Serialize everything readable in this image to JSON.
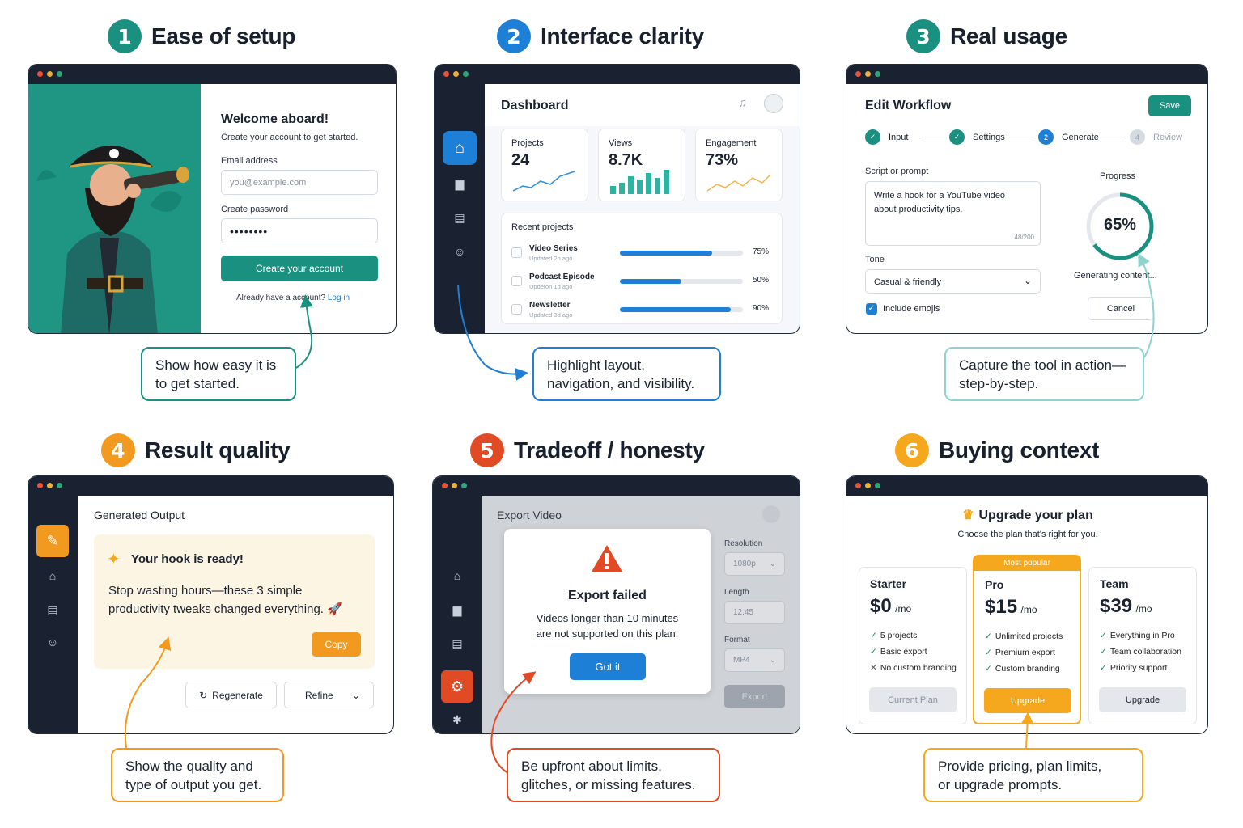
{
  "sections": [
    {
      "num": "1",
      "title": "Ease of setup",
      "callout_l1": "Show how easy it is",
      "callout_l2": "to get started."
    },
    {
      "num": "2",
      "title": "Interface clarity",
      "callout_l1": "Highlight layout,",
      "callout_l2": "navigation, and visibility."
    },
    {
      "num": "3",
      "title": "Real usage",
      "callout_l1": "Capture the tool in action—",
      "callout_l2": "step-by-step."
    },
    {
      "num": "4",
      "title": "Result quality",
      "callout_l1": "Show the quality and",
      "callout_l2": "type of output you get."
    },
    {
      "num": "5",
      "title": "Tradeoff / honesty",
      "callout_l1": "Be upfront about limits,",
      "callout_l2": "glitches, or missing features."
    },
    {
      "num": "6",
      "title": "Buying context",
      "callout_l1": "Provide pricing, plan limits,",
      "callout_l2": "or upgrade prompts."
    }
  ],
  "colors": {
    "teal": "#1a9080",
    "blue": "#1e7fd6",
    "orange": "#f29a1f",
    "red": "#e04b26",
    "gold": "#f5a81d",
    "dark": "#1a2232"
  },
  "signup": {
    "title": "Welcome aboard!",
    "subtitle": "Create your account to get started.",
    "email_label": "Email address",
    "email_placeholder": "you@example.com",
    "password_label": "Create password",
    "password_value": "••••••••",
    "create_button": "Create your account",
    "have_account": "Already have a account?",
    "login_link": "Log in"
  },
  "dashboard": {
    "title": "Dashboard",
    "stats": [
      {
        "label": "Projects",
        "value": "24"
      },
      {
        "label": "Views",
        "value": "8.7K"
      },
      {
        "label": "Engagement",
        "value": "73%"
      }
    ],
    "recent_title": "Recent projects",
    "projects": [
      {
        "name": "Video Series",
        "updated": "Updated 2h ago",
        "pct": "75%",
        "fill": 0.75
      },
      {
        "name": "Podcast Episode",
        "updated": "Updeton 1d ago",
        "pct": "50%",
        "fill": 0.5
      },
      {
        "name": "Newsletter",
        "updated": "Updated 3d ago",
        "pct": "90%",
        "fill": 0.9
      }
    ]
  },
  "workflow": {
    "title": "Edit Workflow",
    "save": "Save",
    "steps": [
      {
        "n": "✓",
        "label": "Input"
      },
      {
        "n": "✓",
        "label": "Settings"
      },
      {
        "n": "2",
        "label": "Generate"
      },
      {
        "n": "4",
        "label": "Review"
      }
    ],
    "script_label": "Script or prompt",
    "script_l1": "Write a hook for a YouTube video",
    "script_l2": "about productivity tips.",
    "counter": "48/200",
    "tone_label": "Tone",
    "tone_value": "Casual & friendly",
    "emojis": "Include emojis",
    "progress_label": "Progress",
    "progress_value": "65%",
    "progress_fraction": 0.65,
    "generating": "Generating content...",
    "cancel": "Cancel"
  },
  "output": {
    "title": "Generated Output",
    "ready": "Your hook is ready!",
    "text_l1": "Stop wasting hours—these 3 simple",
    "text_l2": "productivity tweaks changed everything. 🚀",
    "copy": "Copy",
    "regenerate": "Regenerate",
    "refine": "Refine"
  },
  "export": {
    "title": "Export Video",
    "failed": "Export failed",
    "msg_l1": "Videos longer than 10 minutes",
    "msg_l2": "are not supported on this plan.",
    "got_it": "Got it",
    "resolution_label": "Resolution",
    "resolution": "1080p",
    "length_label": "Length",
    "length": "12.45",
    "format_label": "Format",
    "format": "MP4",
    "export_btn": "Export"
  },
  "pricing": {
    "title": "Upgrade your plan",
    "subtitle": "Choose the plan that's right for you.",
    "popular": "Most popular",
    "plans": [
      {
        "name": "Starter",
        "price": "$0",
        "per": "/mo",
        "features": [
          {
            "mark": "✓",
            "text": "5 projects"
          },
          {
            "mark": "✓",
            "text": "Basic export"
          },
          {
            "mark": "✕",
            "text": "No custom branding"
          }
        ],
        "button": "Current Plan"
      },
      {
        "name": "Pro",
        "price": "$15",
        "per": "/mo",
        "features": [
          {
            "mark": "✓",
            "text": "Unlimited projects"
          },
          {
            "mark": "✓",
            "text": "Premium export"
          },
          {
            "mark": "✓",
            "text": "Custom branding"
          }
        ],
        "button": "Upgrade"
      },
      {
        "name": "Team",
        "price": "$39",
        "per": "/mo",
        "features": [
          {
            "mark": "✓",
            "text": "Everything in Pro"
          },
          {
            "mark": "✓",
            "text": "Team collaboration"
          },
          {
            "mark": "✓",
            "text": "Priority support"
          }
        ],
        "button": "Upgrade"
      }
    ]
  }
}
